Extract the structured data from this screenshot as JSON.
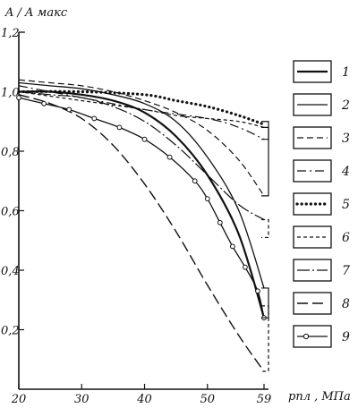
{
  "chart_data": {
    "type": "line",
    "ylabel": "A / A макс",
    "xlabel": "pпл , МПа",
    "x_ticks": [
      "20",
      "30",
      "40",
      "50",
      "59"
    ],
    "y_ticks": [
      "0,2",
      "0,4",
      "0,6",
      "0,8",
      "1,0",
      "1,2"
    ],
    "xlim": [
      20,
      59
    ],
    "ylim": [
      0,
      1.2
    ],
    "series": [
      {
        "name": "1",
        "style": "solid-bold",
        "x": [
          20,
          25,
          30,
          35,
          40,
          45,
          50,
          55,
          59
        ],
        "y": [
          1.0,
          1.0,
          0.99,
          0.97,
          0.93,
          0.85,
          0.72,
          0.52,
          0.24
        ]
      },
      {
        "name": "2",
        "style": "solid",
        "x": [
          20,
          25,
          30,
          35,
          40,
          45,
          50,
          55,
          59
        ],
        "y": [
          1.03,
          1.02,
          1.01,
          0.99,
          0.96,
          0.9,
          0.78,
          0.6,
          0.34
        ]
      },
      {
        "name": "3",
        "style": "dashed",
        "x": [
          20,
          25,
          30,
          35,
          40,
          45,
          50,
          55,
          59
        ],
        "y": [
          1.04,
          1.03,
          1.02,
          1.0,
          0.97,
          0.93,
          0.87,
          0.77,
          0.65
        ]
      },
      {
        "name": "4",
        "style": "dash-dot",
        "x": [
          20,
          30,
          40,
          50,
          55,
          59
        ],
        "y": [
          1.02,
          0.98,
          0.94,
          0.91,
          0.88,
          0.84
        ]
      },
      {
        "name": "5",
        "style": "dotted",
        "x": [
          20,
          30,
          40,
          45,
          50,
          55,
          59
        ],
        "y": [
          1.0,
          1.0,
          0.99,
          0.97,
          0.95,
          0.92,
          0.89
        ]
      },
      {
        "name": "6",
        "style": "short-dash",
        "x": [
          20,
          30,
          40,
          45,
          50,
          55,
          59
        ],
        "y": [
          1.0,
          0.97,
          0.94,
          0.92,
          0.91,
          0.9,
          0.88
        ]
      },
      {
        "name": "7",
        "style": "dash-dot-long",
        "x": [
          20,
          25,
          30,
          35,
          40,
          45,
          50,
          55,
          59
        ],
        "y": [
          1.0,
          0.99,
          0.98,
          0.95,
          0.9,
          0.82,
          0.72,
          0.62,
          0.57
        ]
      },
      {
        "name": "8",
        "style": "long-dash",
        "x": [
          20,
          25,
          30,
          35,
          40,
          45,
          50,
          55,
          59
        ],
        "y": [
          0.99,
          0.96,
          0.91,
          0.82,
          0.69,
          0.53,
          0.35,
          0.18,
          0.06
        ]
      },
      {
        "name": "9",
        "style": "circles",
        "x": [
          20,
          24,
          28,
          32,
          36,
          40,
          44,
          48,
          50,
          52,
          54,
          56,
          58,
          59
        ],
        "y": [
          0.98,
          0.96,
          0.94,
          0.91,
          0.88,
          0.84,
          0.78,
          0.7,
          0.64,
          0.56,
          0.48,
          0.41,
          0.33,
          0.24
        ]
      }
    ],
    "endpoint_brackets": [
      {
        "style": "solid",
        "from": 0.88,
        "to": 0.84
      },
      {
        "style": "solid",
        "from": 0.9,
        "to": 0.65
      },
      {
        "style": "dashed",
        "from": 0.57,
        "to": 0.51
      },
      {
        "style": "solid",
        "from": 0.34,
        "to": 0.24
      },
      {
        "style": "dashed",
        "from": 0.28,
        "to": 0.06
      }
    ],
    "legend_position": "right"
  }
}
